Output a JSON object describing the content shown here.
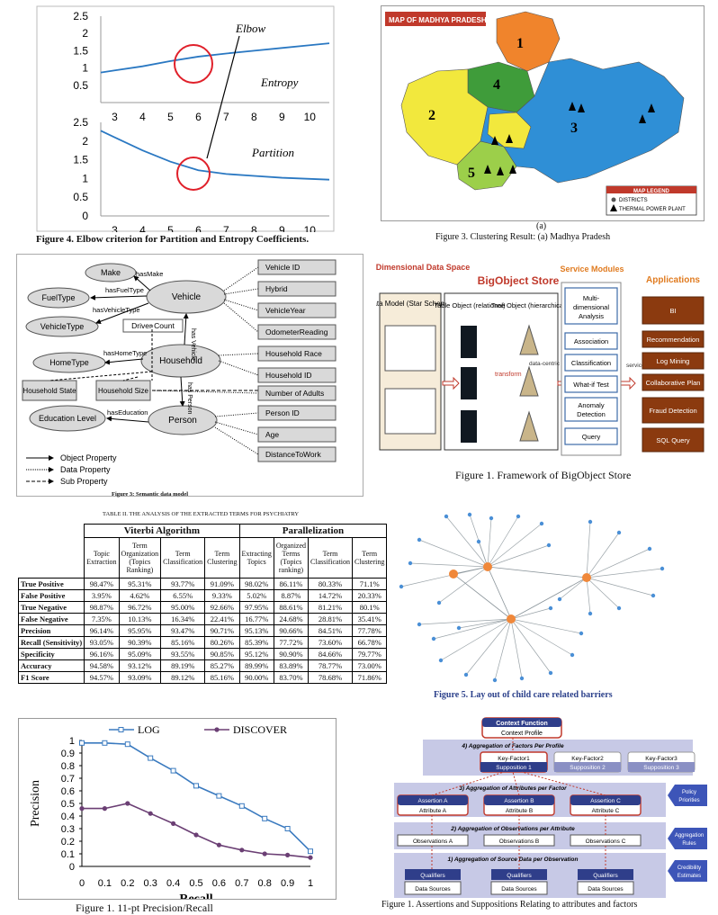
{
  "elbow": {
    "label_elbow": "Elbow",
    "label_entropy": "Entropy",
    "label_partition": "Partition",
    "top_ticks_y": [
      "2.5",
      "2",
      "1.5",
      "1",
      "0.5"
    ],
    "top_ticks_x": [
      "3",
      "4",
      "5",
      "6",
      "7",
      "8",
      "9",
      "10"
    ],
    "bot_ticks_y": [
      "2.5",
      "2",
      "1.5",
      "1",
      "0.5",
      "0"
    ],
    "bot_ticks_x": [
      "3",
      "4",
      "5",
      "6",
      "7",
      "8",
      "9",
      "10"
    ],
    "caption": "Figure 4.    Elbow criterion for Partition and Entropy Coefficients."
  },
  "map": {
    "title": "MAP OF MADHYA PRADESH",
    "clusters": [
      "1",
      "2",
      "3",
      "4",
      "5"
    ],
    "legend_title": "MAP LEGEND",
    "legend_items": [
      "DISTRICTS",
      "THERMAL POWER PLANT"
    ],
    "sub": "(a)",
    "caption": "Figure 3.    Clustering Result: (a) Madhya Pradesh"
  },
  "semantic": {
    "nodes": {
      "make": "Make",
      "fueltype": "FuelType",
      "vehicletype": "VehicleType",
      "vehicle": "Vehicle",
      "hometype": "HomeType",
      "household": "Household",
      "education": "Education Level",
      "person": "Person",
      "driver_count": "Driver Count",
      "household_state": "Household State",
      "household_size": "Household Size"
    },
    "props": [
      "Vehicle ID",
      "Hybrid",
      "VehicleYear",
      "OdometerReading",
      "Household Race",
      "Household ID",
      "Number of Adults",
      "Person ID",
      "Age",
      "DistanceToWork"
    ],
    "edges": {
      "hasmake": "hasMake",
      "hasfueltype": "hasFuelType",
      "hasvehicletype": "hasVehicleType",
      "hashometype": "hasHomeType",
      "haseducation": "hasEducation",
      "hasvehicle": "has Vehicle",
      "hasperson": "has Person"
    },
    "legend": [
      "Object Property",
      "Data Property",
      "Sub Property"
    ],
    "caption": "Figure 3: Semantic data model"
  },
  "bigobject": {
    "col_multi": "Multi-Dimensional Data Space",
    "col_store": "BigObject Store",
    "col_service": "Service Modules",
    "col_apps": "Applications",
    "data_model": "Data Model (Star Schema)",
    "table_obj": "Table Object (relational)",
    "tree_obj": "Tree Object (hierarchical)",
    "transform": "transform",
    "data_centric": "data-centric programming",
    "service_api": "service API",
    "services": [
      "Multi-dimensional Analysis",
      "Association",
      "Classification",
      "What-if Test",
      "Anomaly Detection",
      "Query"
    ],
    "apps": [
      "BI",
      "Recommendation",
      "Log Mining",
      "Collaborative Plan",
      "Fraud Detection",
      "SQL Query"
    ],
    "caption": "Figure 1.  Framework of BigObject Store"
  },
  "table": {
    "title": "TABLE II.      THE ANALYSIS OF THE EXTRACTED TERMS FOR PSYCHIATRY",
    "group1": "Viterbi Algorithm",
    "group2": "Parallelization",
    "headers": [
      "Topic Extraction",
      "Term Organization (Topics Ranking)",
      "Term Classification",
      "Term Clustering",
      "Extracting Topics",
      "Organized Terms (Topics ranking)",
      "Term Classification",
      "Term Clustering"
    ],
    "rows": [
      {
        "label": "True Positive",
        "v": [
          "98.47%",
          "95.31%",
          "93.77%",
          "91.09%",
          "98.02%",
          "86.11%",
          "80.33%",
          "71.1%"
        ]
      },
      {
        "label": "False Positive",
        "v": [
          "3.95%",
          "4.62%",
          "6.55%",
          "9.33%",
          "5.02%",
          "8.87%",
          "14.72%",
          "20.33%"
        ]
      },
      {
        "label": "True Negative",
        "v": [
          "98.87%",
          "96.72%",
          "95.00%",
          "92.66%",
          "97.95%",
          "88.61%",
          "81.21%",
          "80.1%"
        ]
      },
      {
        "label": "False Negative",
        "v": [
          "7.35%",
          "10.13%",
          "16.34%",
          "22.41%",
          "16.77%",
          "24.68%",
          "28.81%",
          "35.41%"
        ]
      },
      {
        "label": "Precision",
        "v": [
          "96.14%",
          "95.95%",
          "93.47%",
          "90.71%",
          "95.13%",
          "90.66%",
          "84.51%",
          "77.78%"
        ]
      },
      {
        "label": "Recall (Sensitivity)",
        "v": [
          "93.05%",
          "90.39%",
          "85.16%",
          "80.26%",
          "85.39%",
          "77.72%",
          "73.60%",
          "66.78%"
        ]
      },
      {
        "label": "Specificity",
        "v": [
          "96.16%",
          "95.09%",
          "93.55%",
          "90.85%",
          "95.12%",
          "90.90%",
          "84.66%",
          "79.77%"
        ]
      },
      {
        "label": "Accuracy",
        "v": [
          "94.58%",
          "93.12%",
          "89.19%",
          "85.27%",
          "89.99%",
          "83.89%",
          "78.77%",
          "73.00%"
        ]
      },
      {
        "label": "F1 Score",
        "v": [
          "94.57%",
          "93.09%",
          "89.12%",
          "85.16%",
          "90.00%",
          "83.70%",
          "78.68%",
          "71.86%"
        ]
      }
    ]
  },
  "network": {
    "caption": "Figure 5.  Lay out of child care related barriers"
  },
  "prcurve": {
    "legend_log": "LOG",
    "legend_discover": "DISCOVER",
    "xlabel": "Recall",
    "ylabel": "Precision",
    "caption": "Figure 1.    11-pt Precision/Recall"
  },
  "assertions": {
    "context_function": "Context Function",
    "context_profile": "Context Profile",
    "agg4": "4) Aggregation of Factors Per Profile",
    "agg3": "3) Aggregation of Attributes per Factor",
    "agg2": "2) Aggregation of Observations per Attribute",
    "agg1": "1) Aggregation of Source Data per Observation",
    "factors": [
      [
        "Key-Factor1",
        "Supposition 1"
      ],
      [
        "Key-Factor2",
        "Supposition 2"
      ],
      [
        "Key-Factor3",
        "Supposition 3"
      ]
    ],
    "assertions": [
      [
        "Assertion A",
        "Attribute A"
      ],
      [
        "Assertion B",
        "Attribute B"
      ],
      [
        "Assertion C",
        "Attribute C"
      ]
    ],
    "observations": [
      "Observations A",
      "Observations B",
      "Observations C"
    ],
    "qualifiers": [
      [
        "Qualifiers",
        "Data Sources"
      ],
      [
        "Qualifiers",
        "Data Sources"
      ],
      [
        "Qualifiers",
        "Data Sources"
      ]
    ],
    "side": [
      "Policy Priorities",
      "Aggregation Rules",
      "Credibility Estimates"
    ],
    "caption": "Figure 1.    Assertions and Suppositions Relating to attributes and factors"
  },
  "chart_data": [
    {
      "type": "line",
      "title": "",
      "xlabel": "",
      "ylabel": "",
      "x": [
        3,
        4,
        5,
        6,
        7,
        8,
        9,
        10
      ],
      "xlim": [
        2.5,
        10.7
      ],
      "ylim": [
        0,
        2.5
      ],
      "series": [
        {
          "name": "Entropy",
          "values": [
            0.93,
            1.05,
            1.2,
            1.33,
            1.42,
            1.5,
            1.58,
            1.66
          ]
        }
      ]
    },
    {
      "type": "line",
      "title": "",
      "xlabel": "",
      "ylabel": "",
      "x": [
        3,
        4,
        5,
        6,
        7,
        8,
        9,
        10
      ],
      "xlim": [
        2.5,
        10.7
      ],
      "ylim": [
        0,
        2.5
      ],
      "series": [
        {
          "name": "Partition",
          "values": [
            2.1,
            1.75,
            1.45,
            1.22,
            1.12,
            1.07,
            1.02,
            0.99
          ]
        }
      ]
    },
    {
      "type": "line",
      "title": "",
      "xlabel": "Recall",
      "ylabel": "Precision",
      "x": [
        0,
        0.1,
        0.2,
        0.3,
        0.4,
        0.5,
        0.6,
        0.7,
        0.8,
        0.9,
        1
      ],
      "xlim": [
        0,
        1
      ],
      "ylim": [
        0,
        1
      ],
      "series": [
        {
          "name": "LOG",
          "values": [
            0.98,
            0.98,
            0.97,
            0.86,
            0.76,
            0.64,
            0.56,
            0.48,
            0.38,
            0.3,
            0.12
          ]
        },
        {
          "name": "DISCOVER",
          "values": [
            0.46,
            0.46,
            0.5,
            0.42,
            0.34,
            0.25,
            0.17,
            0.13,
            0.1,
            0.09,
            0.07
          ]
        }
      ]
    }
  ]
}
